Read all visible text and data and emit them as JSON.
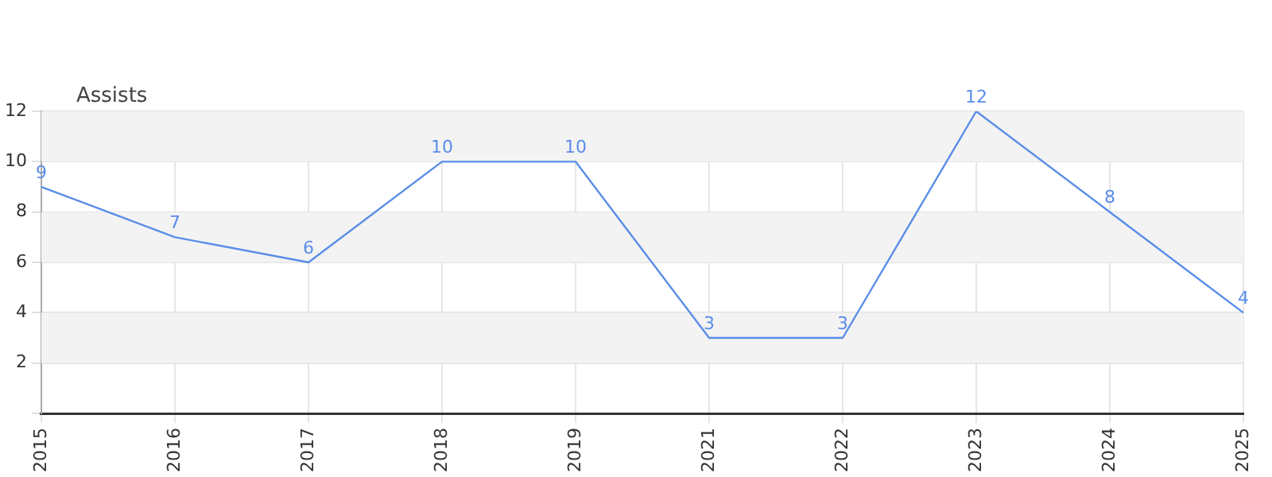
{
  "chart_data": {
    "type": "line",
    "ylabel": "Assists",
    "categories": [
      "2015",
      "2016",
      "2017",
      "2018",
      "2019",
      "2021",
      "2022",
      "2023",
      "2024",
      "2025"
    ],
    "series": [
      {
        "color": "#5a8de8",
        "values": [
          9,
          7,
          6,
          10,
          10,
          3,
          3,
          12,
          8,
          4
        ]
      }
    ],
    "ylim": [
      0,
      12
    ],
    "yticks": [
      {
        "value": 0,
        "label": null
      },
      2,
      4,
      6,
      8,
      10,
      12
    ],
    "bands": [
      {
        "axis": "y",
        "from": 10,
        "to": 12,
        "color": "#f3f3f3"
      },
      {
        "axis": "y",
        "from": 6,
        "to": 8,
        "color": "#f3f3f3"
      },
      {
        "axis": "y",
        "from": 2,
        "to": 4,
        "color": "#f3f3f3"
      }
    ],
    "grid": true,
    "data_labels": true,
    "legend": false,
    "marker": "none",
    "line_style": "solid"
  }
}
